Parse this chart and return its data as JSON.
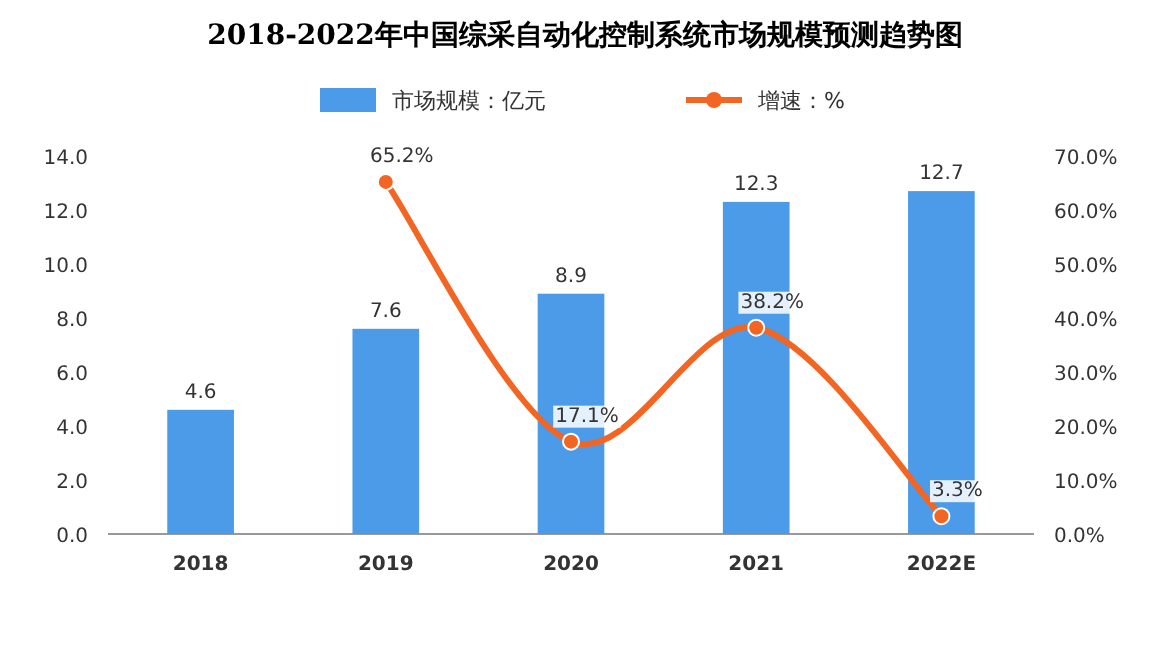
{
  "chart_data": {
    "type": "bar",
    "title": "2018-2022年中国综采自动化控制系统市场规模预测趋势图",
    "categories": [
      "2018",
      "2019",
      "2020",
      "2021",
      "2022E"
    ],
    "series": [
      {
        "name": "市场规模：亿元",
        "color": "#4c9be8",
        "values": [
          4.6,
          7.6,
          8.9,
          12.3,
          12.7
        ]
      },
      {
        "name": "增速：%",
        "type": "line",
        "axis": "y2",
        "color": "#f26522",
        "marker": "circle",
        "values": [
          null,
          65.2,
          17.1,
          38.2,
          3.3
        ],
        "value_labels": [
          null,
          "65.2%",
          "17.1%",
          "38.2%",
          "3.3%"
        ]
      }
    ],
    "ylim": [
      0,
      14
    ],
    "yticks": [
      {
        "value": 0,
        "label": "0.0"
      },
      {
        "value": 2,
        "label": "2.0"
      },
      {
        "value": 4,
        "label": "4.0"
      },
      {
        "value": 6,
        "label": "6.0"
      },
      {
        "value": 8,
        "label": "8.0"
      },
      {
        "value": 10,
        "label": "10.0"
      },
      {
        "value": 12,
        "label": "12.0"
      },
      {
        "value": 14,
        "label": "14.0"
      }
    ],
    "y2lim": [
      0,
      70
    ],
    "y2ticks": [
      {
        "value": 0,
        "label": "0.0%"
      },
      {
        "value": 10,
        "label": "10.0%"
      },
      {
        "value": 20,
        "label": "20.0%"
      },
      {
        "value": 30,
        "label": "30.0%"
      },
      {
        "value": 40,
        "label": "40.0%"
      },
      {
        "value": 50,
        "label": "50.0%"
      },
      {
        "value": 60,
        "label": "60.0%"
      },
      {
        "value": 70,
        "label": "70.0%"
      }
    ],
    "data_labels": true,
    "legend": "top",
    "grid": false
  }
}
